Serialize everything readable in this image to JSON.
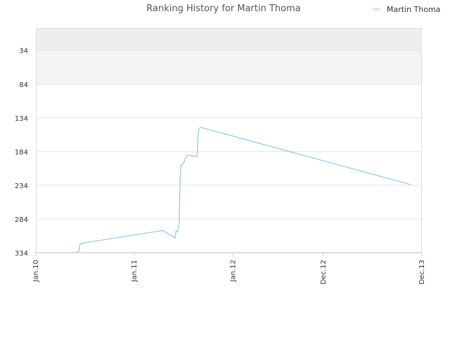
{
  "chart_data": {
    "type": "line",
    "title": "Ranking History for Martin Thoma",
    "xlabel": "",
    "ylabel": "",
    "y_inverted": true,
    "ylim": [
      1,
      334
    ],
    "xlim": [
      "2010-01-01",
      "2013-12-01"
    ],
    "x_ticks": [
      {
        "label": "Jan.10",
        "date": "2010-01-01"
      },
      {
        "label": "Jan.11",
        "date": "2011-01-01"
      },
      {
        "label": "Jan.12",
        "date": "2012-01-01"
      },
      {
        "label": "Dec.12",
        "date": "2012-12-01"
      },
      {
        "label": "Dec.13",
        "date": "2013-12-01"
      }
    ],
    "y_ticks": [
      34,
      84,
      134,
      184,
      234,
      284,
      334
    ],
    "grid": "horizontal",
    "band_colors": [
      "#eeeeee",
      "#f4f4f4",
      "#ffffff"
    ],
    "legend_position": "top-right",
    "series": [
      {
        "name": "Martin Thoma",
        "color": "#90c4ec",
        "points": [
          [
            "2010-06-01",
            334
          ],
          [
            "2010-06-10",
            331
          ],
          [
            "2010-06-13",
            322
          ],
          [
            "2010-06-20",
            320
          ],
          [
            "2011-04-15",
            301
          ],
          [
            "2011-06-01",
            312
          ],
          [
            "2011-06-04",
            302
          ],
          [
            "2011-06-10",
            303
          ],
          [
            "2011-06-13",
            295
          ],
          [
            "2011-06-16",
            290
          ],
          [
            "2011-06-19",
            230
          ],
          [
            "2011-06-22",
            205
          ],
          [
            "2011-06-28",
            203
          ],
          [
            "2011-07-04",
            200
          ],
          [
            "2011-07-10",
            193
          ],
          [
            "2011-07-19",
            189
          ],
          [
            "2011-08-04",
            191
          ],
          [
            "2011-08-19",
            191
          ],
          [
            "2011-08-22",
            187
          ],
          [
            "2011-08-25",
            160
          ],
          [
            "2011-08-28",
            150
          ],
          [
            "2011-09-03",
            148
          ],
          [
            "2013-10-20",
            233
          ]
        ]
      }
    ]
  }
}
